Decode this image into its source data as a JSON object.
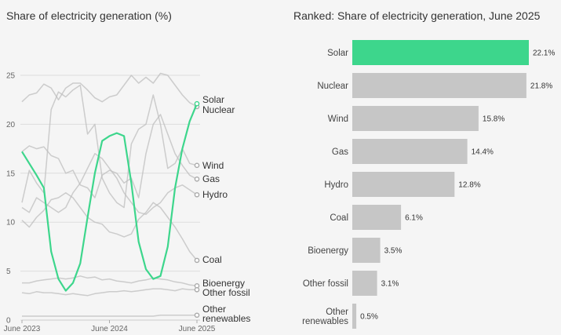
{
  "colors": {
    "solar": "#3dd68c",
    "bar_gray": "#c6c6c6",
    "line_gray": "#bdbdbd",
    "grid": "#dddddd"
  },
  "chart_data": [
    {
      "type": "line",
      "title": "Share of electricity generation (%)",
      "ylim": [
        0,
        25
      ],
      "yticks": [
        0,
        5,
        10,
        15,
        20,
        25
      ],
      "xtick_labels": [
        "June 2023",
        "June 2024",
        "June 2025"
      ],
      "x": [
        "2023-06",
        "2023-07",
        "2023-08",
        "2023-09",
        "2023-10",
        "2023-11",
        "2023-12",
        "2024-01",
        "2024-02",
        "2024-03",
        "2024-04",
        "2024-05",
        "2024-06",
        "2024-07",
        "2024-08",
        "2024-09",
        "2024-10",
        "2024-11",
        "2024-12",
        "2025-01",
        "2025-02",
        "2025-03",
        "2025-04",
        "2025-05",
        "2025-06"
      ],
      "grid": true,
      "series": [
        {
          "name": "Solar",
          "highlight": true,
          "values": [
            17.2,
            16.0,
            14.8,
            13.5,
            7.0,
            4.2,
            3.0,
            3.8,
            5.8,
            10.5,
            15.0,
            18.3,
            18.8,
            19.1,
            18.8,
            14.0,
            8.0,
            5.2,
            4.2,
            4.5,
            7.5,
            13.5,
            17.5,
            20.3,
            22.1
          ]
        },
        {
          "name": "Nuclear",
          "values": [
            22.3,
            23.0,
            23.2,
            24.1,
            23.7,
            22.5,
            23.7,
            24.2,
            24.2,
            23.5,
            22.7,
            22.3,
            22.8,
            23.0,
            24.0,
            25.0,
            24.2,
            24.8,
            24.2,
            25.2,
            25.0,
            24.0,
            23.0,
            22.2,
            21.8
          ]
        },
        {
          "name": "Wind",
          "values": [
            12.0,
            15.3,
            14.0,
            13.0,
            21.5,
            23.3,
            22.8,
            23.5,
            24.0,
            19.0,
            20.0,
            14.5,
            13.0,
            12.0,
            11.5,
            18.0,
            19.5,
            20.0,
            23.0,
            20.0,
            15.5,
            16.0,
            17.5,
            16.0,
            15.8
          ]
        },
        {
          "name": "Gas",
          "values": [
            17.2,
            17.8,
            17.5,
            17.7,
            16.8,
            16.5,
            15.0,
            15.3,
            13.8,
            13.5,
            12.5,
            14.8,
            15.3,
            15.0,
            14.0,
            14.5,
            12.5,
            17.0,
            20.0,
            21.0,
            19.0,
            17.0,
            15.8,
            14.8,
            14.4
          ]
        },
        {
          "name": "Hydro",
          "values": [
            11.5,
            11.0,
            12.5,
            12.0,
            11.5,
            11.0,
            11.5,
            13.0,
            14.0,
            15.5,
            17.0,
            16.5,
            15.5,
            14.5,
            13.0,
            12.0,
            11.0,
            10.8,
            11.5,
            12.0,
            13.0,
            13.5,
            13.8,
            13.3,
            12.8
          ]
        },
        {
          "name": "Coal",
          "values": [
            10.2,
            9.5,
            10.5,
            11.2,
            12.3,
            12.5,
            13.0,
            12.5,
            11.5,
            10.5,
            10.0,
            9.8,
            9.0,
            8.8,
            8.5,
            8.8,
            10.3,
            11.0,
            12.0,
            11.5,
            10.5,
            9.5,
            8.3,
            7.0,
            6.1
          ]
        },
        {
          "name": "Bioenergy",
          "values": [
            3.8,
            3.8,
            4.0,
            4.1,
            4.2,
            4.3,
            4.2,
            4.3,
            4.5,
            4.3,
            4.4,
            4.1,
            4.2,
            4.0,
            3.9,
            3.8,
            4.0,
            4.1,
            4.3,
            4.2,
            4.1,
            3.9,
            3.8,
            3.6,
            3.5
          ]
        },
        {
          "name": "Other fossil",
          "values": [
            2.8,
            2.7,
            2.9,
            2.8,
            2.8,
            2.7,
            2.6,
            2.7,
            2.6,
            2.5,
            2.7,
            2.8,
            2.9,
            2.9,
            3.0,
            2.9,
            3.0,
            3.1,
            3.2,
            3.2,
            3.1,
            3.0,
            3.2,
            3.1,
            3.1
          ]
        },
        {
          "name": "Other renewables",
          "values": [
            0.4,
            0.4,
            0.4,
            0.4,
            0.4,
            0.4,
            0.4,
            0.4,
            0.4,
            0.4,
            0.4,
            0.4,
            0.4,
            0.4,
            0.4,
            0.4,
            0.4,
            0.4,
            0.4,
            0.5,
            0.5,
            0.5,
            0.5,
            0.5,
            0.5
          ]
        }
      ],
      "end_labels": [
        "Solar",
        "Nuclear",
        "Wind",
        "Gas",
        "Hydro",
        "Coal",
        "Bioenergy",
        "Other fossil",
        "Other",
        "renewables"
      ]
    },
    {
      "type": "bar",
      "orientation": "horizontal",
      "title": "Ranked: Share of electricity generation, June 2025",
      "categories": [
        "Solar",
        "Nuclear",
        "Wind",
        "Gas",
        "Hydro",
        "Coal",
        "Bioenergy",
        "Other fossil",
        "Other renewables"
      ],
      "category_lines": [
        [
          "Solar"
        ],
        [
          "Nuclear"
        ],
        [
          "Wind"
        ],
        [
          "Gas"
        ],
        [
          "Hydro"
        ],
        [
          "Coal"
        ],
        [
          "Bioenergy"
        ],
        [
          "Other fossil"
        ],
        [
          "Other",
          "renewables"
        ]
      ],
      "values": [
        22.1,
        21.8,
        15.8,
        14.4,
        12.8,
        6.1,
        3.5,
        3.1,
        0.5
      ],
      "value_labels": [
        "22.1%",
        "21.8%",
        "15.8%",
        "14.4%",
        "12.8%",
        "6.1%",
        "3.5%",
        "3.1%",
        "0.5%"
      ]
    }
  ]
}
